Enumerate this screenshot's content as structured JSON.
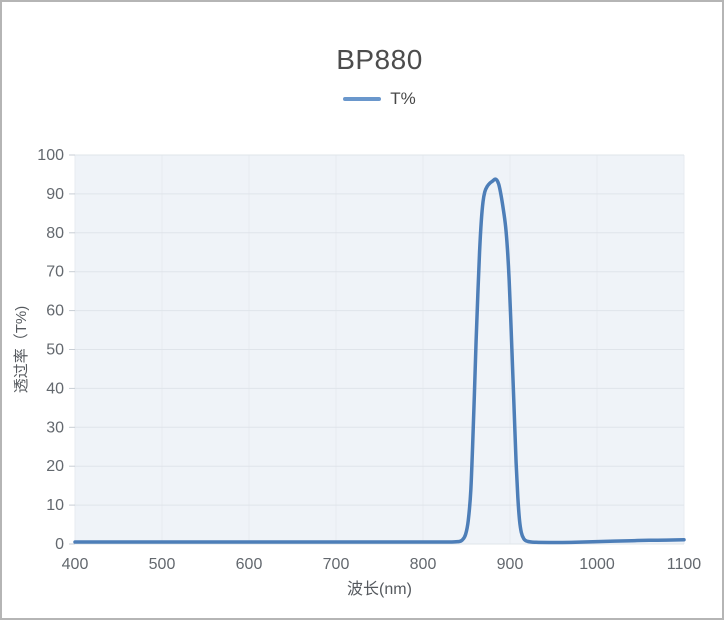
{
  "window": {
    "border_color": "#b5b5b5",
    "background": "#ffffff"
  },
  "chart_data": {
    "type": "line",
    "title": "BP880",
    "xlabel": "波长(nm)",
    "ylabel": "透过率（T%)",
    "xlim": [
      400,
      1100
    ],
    "ylim": [
      0,
      100
    ],
    "x_ticks": [
      400,
      500,
      600,
      700,
      800,
      900,
      1000,
      1100
    ],
    "y_ticks": [
      0,
      10,
      20,
      30,
      40,
      50,
      60,
      70,
      80,
      90,
      100
    ],
    "grid": true,
    "legend": {
      "position": "top",
      "entries": [
        "T%"
      ]
    },
    "series": [
      {
        "name": "T%",
        "color": "#4d7eb8",
        "points": [
          [
            400,
            0.5
          ],
          [
            430,
            0.5
          ],
          [
            460,
            0.5
          ],
          [
            490,
            0.5
          ],
          [
            520,
            0.5
          ],
          [
            550,
            0.5
          ],
          [
            580,
            0.5
          ],
          [
            610,
            0.5
          ],
          [
            640,
            0.5
          ],
          [
            670,
            0.5
          ],
          [
            700,
            0.5
          ],
          [
            730,
            0.5
          ],
          [
            760,
            0.5
          ],
          [
            790,
            0.5
          ],
          [
            810,
            0.5
          ],
          [
            830,
            0.5
          ],
          [
            840,
            0.6
          ],
          [
            845,
            1.0
          ],
          [
            849,
            2.5
          ],
          [
            852,
            6
          ],
          [
            855,
            14
          ],
          [
            857,
            25
          ],
          [
            859,
            38
          ],
          [
            861,
            52
          ],
          [
            863,
            64
          ],
          [
            865,
            75
          ],
          [
            867,
            83
          ],
          [
            869,
            88
          ],
          [
            871,
            90.5
          ],
          [
            874,
            92
          ],
          [
            877,
            92.8
          ],
          [
            880,
            93.3
          ],
          [
            883,
            93.8
          ],
          [
            885,
            93.5
          ],
          [
            887,
            92.5
          ],
          [
            889,
            90.5
          ],
          [
            892,
            86.5
          ],
          [
            895,
            81.5
          ],
          [
            897,
            76
          ],
          [
            899,
            68
          ],
          [
            901,
            57
          ],
          [
            903,
            45
          ],
          [
            905,
            33
          ],
          [
            907,
            21
          ],
          [
            909,
            12
          ],
          [
            911,
            6
          ],
          [
            913,
            3
          ],
          [
            916,
            1.3
          ],
          [
            920,
            0.7
          ],
          [
            930,
            0.45
          ],
          [
            945,
            0.4
          ],
          [
            960,
            0.4
          ],
          [
            975,
            0.45
          ],
          [
            990,
            0.55
          ],
          [
            1005,
            0.65
          ],
          [
            1020,
            0.75
          ],
          [
            1040,
            0.85
          ],
          [
            1060,
            0.95
          ],
          [
            1080,
            1.0
          ],
          [
            1100,
            1.1
          ]
        ]
      }
    ],
    "colors": {
      "plot_bg": "#eff3f8",
      "grid_h": "#dfe4ea",
      "grid_v": "#e7ebf0",
      "tick_text": "#63686e",
      "title_text": "#4c4c4c",
      "legend_text": "#474747",
      "legend_swatch": "#6a97cc",
      "axis_title_text": "#55595e",
      "tick_mark": "#c7cdd4"
    }
  }
}
